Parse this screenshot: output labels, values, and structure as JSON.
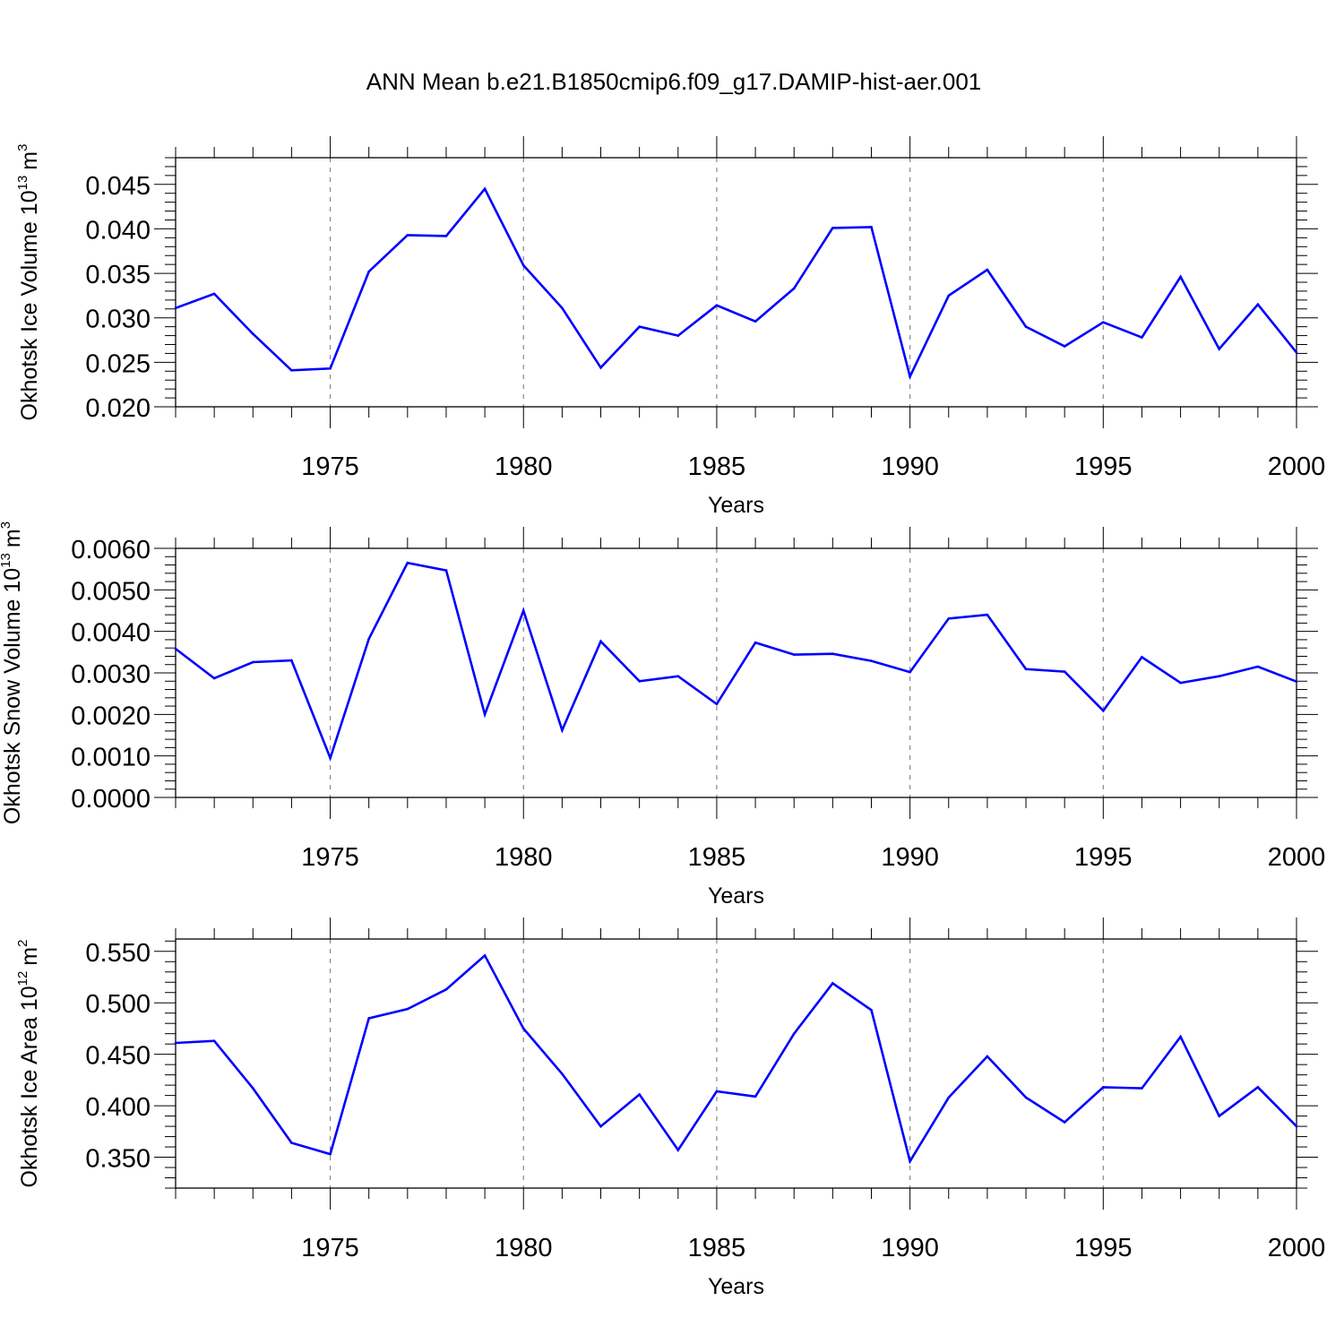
{
  "title": "ANN Mean b.e21.B1850cmip6.f09_g17.DAMIP-hist-aer.001",
  "colors": {
    "line": "#0000ff",
    "axis": "#000000",
    "grid": "#888888"
  },
  "chart_data": [
    {
      "type": "line",
      "xlabel": "Years",
      "ylabel_text": "Okhotsk Ice Volume 10",
      "ylabel_exp": "13",
      "ylabel_unit": "m",
      "ylabel_unit_exp": "3",
      "xlim": [
        1971,
        2000
      ],
      "ylim": [
        0.02,
        0.048
      ],
      "xticks": [
        1975,
        1980,
        1985,
        1990,
        1995,
        2000
      ],
      "yticks": [
        "0.020",
        "0.025",
        "0.030",
        "0.035",
        "0.040",
        "0.045"
      ],
      "grid": "vertical dashed at major x ticks",
      "x": [
        1971,
        1972,
        1973,
        1974,
        1975,
        1976,
        1977,
        1978,
        1979,
        1980,
        1981,
        1982,
        1983,
        1984,
        1985,
        1986,
        1987,
        1988,
        1989,
        1990,
        1991,
        1992,
        1993,
        1994,
        1995,
        1996,
        1997,
        1998,
        1999,
        2000
      ],
      "values": [
        0.0311,
        0.0327,
        0.0282,
        0.0241,
        0.0243,
        0.0352,
        0.0393,
        0.0392,
        0.0445,
        0.0359,
        0.0311,
        0.0244,
        0.029,
        0.028,
        0.0314,
        0.0296,
        0.0333,
        0.0401,
        0.0402,
        0.0234,
        0.0325,
        0.0354,
        0.029,
        0.0268,
        0.0295,
        0.0278,
        0.0346,
        0.0265,
        0.0315,
        0.0261
      ]
    },
    {
      "type": "line",
      "xlabel": "Years",
      "ylabel_text": "Okhotsk Snow Volume 10",
      "ylabel_exp": "13",
      "ylabel_unit": "m",
      "ylabel_unit_exp": "3",
      "xlim": [
        1971,
        2000
      ],
      "ylim": [
        0.0,
        0.006
      ],
      "xticks": [
        1975,
        1980,
        1985,
        1990,
        1995,
        2000
      ],
      "yticks": [
        "0.0000",
        "0.0010",
        "0.0020",
        "0.0030",
        "0.0040",
        "0.0050",
        "0.0060"
      ],
      "grid": "vertical dashed at major x ticks",
      "x": [
        1971,
        1972,
        1973,
        1974,
        1975,
        1976,
        1977,
        1978,
        1979,
        1980,
        1981,
        1982,
        1983,
        1984,
        1985,
        1986,
        1987,
        1988,
        1989,
        1990,
        1991,
        1992,
        1993,
        1994,
        1995,
        1996,
        1997,
        1998,
        1999,
        2000
      ],
      "values": [
        0.00358,
        0.00287,
        0.00326,
        0.0033,
        0.00095,
        0.00382,
        0.00565,
        0.00547,
        0.002,
        0.0045,
        0.00162,
        0.00376,
        0.0028,
        0.00292,
        0.00225,
        0.00373,
        0.00344,
        0.00346,
        0.00329,
        0.00302,
        0.00431,
        0.0044,
        0.00309,
        0.00303,
        0.00209,
        0.00338,
        0.00276,
        0.00292,
        0.00315,
        0.00279
      ]
    },
    {
      "type": "line",
      "xlabel": "Years",
      "ylabel_text": "Okhotsk Ice Area 10",
      "ylabel_exp": "12",
      "ylabel_unit": "m",
      "ylabel_unit_exp": "2",
      "xlim": [
        1971,
        2000
      ],
      "ylim": [
        0.32,
        0.562
      ],
      "xticks": [
        1975,
        1980,
        1985,
        1990,
        1995,
        2000
      ],
      "yticks": [
        "0.350",
        "0.400",
        "0.450",
        "0.500",
        "0.550"
      ],
      "grid": "vertical dashed at major x ticks",
      "x": [
        1971,
        1972,
        1973,
        1974,
        1975,
        1976,
        1977,
        1978,
        1979,
        1980,
        1981,
        1982,
        1983,
        1984,
        1985,
        1986,
        1987,
        1988,
        1989,
        1990,
        1991,
        1992,
        1993,
        1994,
        1995,
        1996,
        1997,
        1998,
        1999,
        2000
      ],
      "values": [
        0.461,
        0.463,
        0.417,
        0.364,
        0.353,
        0.485,
        0.494,
        0.513,
        0.546,
        0.475,
        0.431,
        0.38,
        0.411,
        0.357,
        0.414,
        0.409,
        0.47,
        0.519,
        0.493,
        0.346,
        0.408,
        0.448,
        0.408,
        0.384,
        0.418,
        0.417,
        0.467,
        0.39,
        0.418,
        0.38
      ]
    }
  ]
}
